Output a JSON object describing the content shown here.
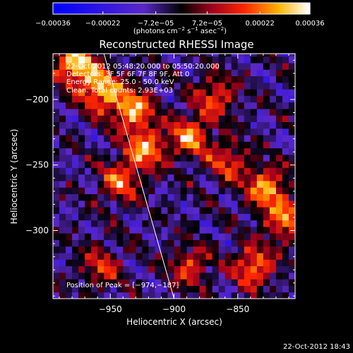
{
  "chart_data": {
    "type": "heatmap",
    "title": "Reconstructed RHESSI Image",
    "xlabel": "Heliocentric X (arcsec)",
    "ylabel": "Heliocentric Y (arcsec)",
    "xlim": [
      -995,
      -805
    ],
    "ylim": [
      -352,
      -165
    ],
    "x_ticks": [
      -950,
      -900,
      -850
    ],
    "x_tick_labels": [
      "−950",
      "−900",
      "−850"
    ],
    "y_ticks": [
      -200,
      -250,
      -300
    ],
    "y_tick_labels": [
      "−200",
      "−250",
      "−300"
    ],
    "colorbar": {
      "range": [
        -0.00036,
        0.00036
      ],
      "ticks": [
        -0.00036,
        -0.00022,
        -7.2e-05,
        7.2e-05,
        0.00022,
        0.00036
      ],
      "tick_labels": [
        "−0.00036",
        "−0.00022",
        "−7.2e−05",
        "7.2e−05",
        "0.00022",
        "0.00036"
      ],
      "unit_prefix": "(photons cm",
      "unit_exp1": "−2",
      "unit_mid": " s",
      "unit_exp2": "−1",
      "unit_mid2": " asec",
      "unit_exp3": "−2",
      "unit_suffix": ")"
    },
    "annotations": {
      "time_range": "22-Oct-2012 05:48:20.000 to 05:50:20.000",
      "detectors": "Detectors: 3F 5F 6F 7F 8F 9F, Att 0",
      "energy_range": "Energy Range: 25.0 - 50.0 keV",
      "clean": "Clean. Total counts: 2.93E+03",
      "peak": "Position of Peak = [−974,−187]"
    },
    "peak_position": [
      -974,
      -187
    ],
    "limb_line": {
      "x": [
        -955,
        -900
      ],
      "y": [
        -165,
        -352
      ]
    },
    "hotspots": [
      {
        "x": -980,
        "y": -175,
        "value": 1.0
      },
      {
        "x": -960,
        "y": -195,
        "value": 0.9
      },
      {
        "x": -935,
        "y": -210,
        "value": 0.85
      },
      {
        "x": -925,
        "y": -240,
        "value": 0.8
      },
      {
        "x": -945,
        "y": -265,
        "value": 0.65
      },
      {
        "x": -890,
        "y": -230,
        "value": 0.75
      },
      {
        "x": -870,
        "y": -200,
        "value": 0.6
      },
      {
        "x": -830,
        "y": -270,
        "value": 0.8
      },
      {
        "x": -815,
        "y": -295,
        "value": 0.7
      },
      {
        "x": -840,
        "y": -330,
        "value": 0.75
      },
      {
        "x": -890,
        "y": -330,
        "value": 0.55
      },
      {
        "x": -960,
        "y": -330,
        "value": 0.5
      },
      {
        "x": -860,
        "y": -250,
        "value": 0.55
      }
    ]
  },
  "footer": {
    "timestamp": "22-Oct-2012 18:43"
  }
}
